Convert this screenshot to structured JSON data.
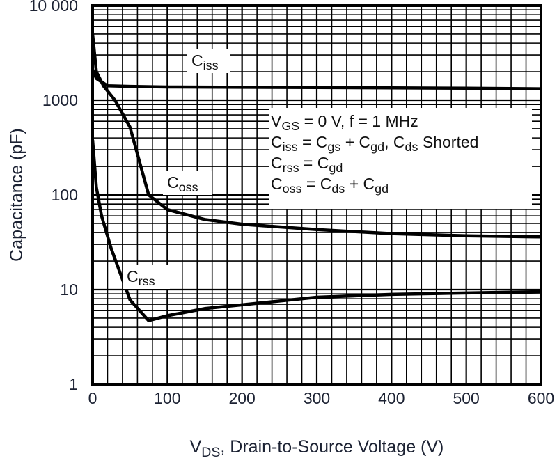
{
  "chart_data": {
    "type": "line",
    "title": "",
    "xlabel": [
      "V",
      "DS",
      ", Drain-to-Source Voltage (V)"
    ],
    "ylabel": "Capacitance (pF)",
    "xlim": [
      0,
      600
    ],
    "ylim": [
      1,
      10000
    ],
    "yscale": "log",
    "grid": true,
    "x_ticks": [
      "0",
      "100",
      "200",
      "300",
      "400",
      "500",
      "600"
    ],
    "y_ticks": [
      "1",
      "10",
      "100",
      "1000",
      "10 000"
    ],
    "series": [
      {
        "name": [
          "C",
          "iss"
        ],
        "points": [
          [
            0,
            2100
          ],
          [
            5,
            1700
          ],
          [
            20,
            1420
          ],
          [
            50,
            1400
          ],
          [
            100,
            1380
          ],
          [
            200,
            1370
          ],
          [
            300,
            1360
          ],
          [
            400,
            1350
          ],
          [
            500,
            1340
          ],
          [
            600,
            1320
          ]
        ]
      },
      {
        "name": [
          "C",
          "oss"
        ],
        "points": [
          [
            0,
            5000
          ],
          [
            5,
            2000
          ],
          [
            15,
            1400
          ],
          [
            30,
            1000
          ],
          [
            50,
            520
          ],
          [
            75,
            100
          ],
          [
            100,
            70
          ],
          [
            150,
            55
          ],
          [
            200,
            49
          ],
          [
            300,
            43
          ],
          [
            400,
            39
          ],
          [
            500,
            37
          ],
          [
            600,
            36
          ]
        ]
      },
      {
        "name": [
          "C",
          "rss"
        ],
        "points": [
          [
            0,
            380
          ],
          [
            5,
            120
          ],
          [
            12,
            60
          ],
          [
            25,
            27
          ],
          [
            50,
            7.8
          ],
          [
            75,
            4.7
          ],
          [
            100,
            5.3
          ],
          [
            150,
            6.3
          ],
          [
            200,
            6.9
          ],
          [
            300,
            8.3
          ],
          [
            400,
            8.9
          ],
          [
            500,
            9.2
          ],
          [
            600,
            9.5
          ]
        ]
      }
    ],
    "annotation": [
      [
        "V",
        "GS",
        " = 0 V, f = 1 MHz"
      ],
      [
        "C",
        "iss",
        " = C",
        "gs",
        " + C",
        "gd",
        ", C",
        "ds",
        " Shorted"
      ],
      [
        "C",
        "rss",
        " = C",
        "gd"
      ],
      [
        "C",
        "oss",
        " = C",
        "ds",
        " + C",
        "gd"
      ]
    ],
    "colors": {
      "line": "#000000",
      "tick_text": "#1c2233"
    }
  }
}
